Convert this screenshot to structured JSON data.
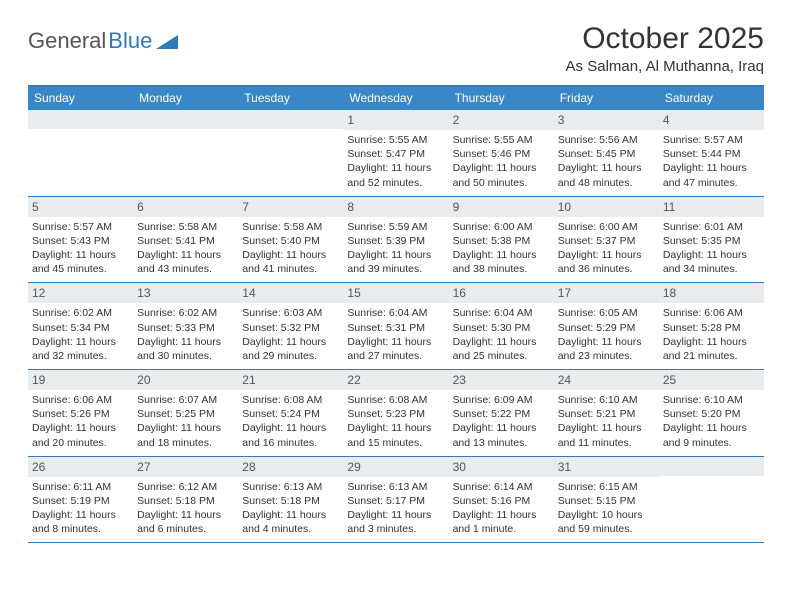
{
  "logo": {
    "text1": "General",
    "text2": "Blue"
  },
  "title": "October 2025",
  "location": "As Salman, Al Muthanna, Iraq",
  "colors": {
    "header_bg": "#3a87c8",
    "border": "#2f7ab8",
    "daynum_bg": "#e9ecef",
    "text": "#333333",
    "logo_gray": "#555555",
    "logo_blue": "#2f7ab8"
  },
  "day_labels": [
    "Sunday",
    "Monday",
    "Tuesday",
    "Wednesday",
    "Thursday",
    "Friday",
    "Saturday"
  ],
  "weeks": [
    [
      {
        "day": "",
        "sunrise": "",
        "sunset": "",
        "daylight": ""
      },
      {
        "day": "",
        "sunrise": "",
        "sunset": "",
        "daylight": ""
      },
      {
        "day": "",
        "sunrise": "",
        "sunset": "",
        "daylight": ""
      },
      {
        "day": "1",
        "sunrise": "Sunrise: 5:55 AM",
        "sunset": "Sunset: 5:47 PM",
        "daylight": "Daylight: 11 hours and 52 minutes."
      },
      {
        "day": "2",
        "sunrise": "Sunrise: 5:55 AM",
        "sunset": "Sunset: 5:46 PM",
        "daylight": "Daylight: 11 hours and 50 minutes."
      },
      {
        "day": "3",
        "sunrise": "Sunrise: 5:56 AM",
        "sunset": "Sunset: 5:45 PM",
        "daylight": "Daylight: 11 hours and 48 minutes."
      },
      {
        "day": "4",
        "sunrise": "Sunrise: 5:57 AM",
        "sunset": "Sunset: 5:44 PM",
        "daylight": "Daylight: 11 hours and 47 minutes."
      }
    ],
    [
      {
        "day": "5",
        "sunrise": "Sunrise: 5:57 AM",
        "sunset": "Sunset: 5:43 PM",
        "daylight": "Daylight: 11 hours and 45 minutes."
      },
      {
        "day": "6",
        "sunrise": "Sunrise: 5:58 AM",
        "sunset": "Sunset: 5:41 PM",
        "daylight": "Daylight: 11 hours and 43 minutes."
      },
      {
        "day": "7",
        "sunrise": "Sunrise: 5:58 AM",
        "sunset": "Sunset: 5:40 PM",
        "daylight": "Daylight: 11 hours and 41 minutes."
      },
      {
        "day": "8",
        "sunrise": "Sunrise: 5:59 AM",
        "sunset": "Sunset: 5:39 PM",
        "daylight": "Daylight: 11 hours and 39 minutes."
      },
      {
        "day": "9",
        "sunrise": "Sunrise: 6:00 AM",
        "sunset": "Sunset: 5:38 PM",
        "daylight": "Daylight: 11 hours and 38 minutes."
      },
      {
        "day": "10",
        "sunrise": "Sunrise: 6:00 AM",
        "sunset": "Sunset: 5:37 PM",
        "daylight": "Daylight: 11 hours and 36 minutes."
      },
      {
        "day": "11",
        "sunrise": "Sunrise: 6:01 AM",
        "sunset": "Sunset: 5:35 PM",
        "daylight": "Daylight: 11 hours and 34 minutes."
      }
    ],
    [
      {
        "day": "12",
        "sunrise": "Sunrise: 6:02 AM",
        "sunset": "Sunset: 5:34 PM",
        "daylight": "Daylight: 11 hours and 32 minutes."
      },
      {
        "day": "13",
        "sunrise": "Sunrise: 6:02 AM",
        "sunset": "Sunset: 5:33 PM",
        "daylight": "Daylight: 11 hours and 30 minutes."
      },
      {
        "day": "14",
        "sunrise": "Sunrise: 6:03 AM",
        "sunset": "Sunset: 5:32 PM",
        "daylight": "Daylight: 11 hours and 29 minutes."
      },
      {
        "day": "15",
        "sunrise": "Sunrise: 6:04 AM",
        "sunset": "Sunset: 5:31 PM",
        "daylight": "Daylight: 11 hours and 27 minutes."
      },
      {
        "day": "16",
        "sunrise": "Sunrise: 6:04 AM",
        "sunset": "Sunset: 5:30 PM",
        "daylight": "Daylight: 11 hours and 25 minutes."
      },
      {
        "day": "17",
        "sunrise": "Sunrise: 6:05 AM",
        "sunset": "Sunset: 5:29 PM",
        "daylight": "Daylight: 11 hours and 23 minutes."
      },
      {
        "day": "18",
        "sunrise": "Sunrise: 6:06 AM",
        "sunset": "Sunset: 5:28 PM",
        "daylight": "Daylight: 11 hours and 21 minutes."
      }
    ],
    [
      {
        "day": "19",
        "sunrise": "Sunrise: 6:06 AM",
        "sunset": "Sunset: 5:26 PM",
        "daylight": "Daylight: 11 hours and 20 minutes."
      },
      {
        "day": "20",
        "sunrise": "Sunrise: 6:07 AM",
        "sunset": "Sunset: 5:25 PM",
        "daylight": "Daylight: 11 hours and 18 minutes."
      },
      {
        "day": "21",
        "sunrise": "Sunrise: 6:08 AM",
        "sunset": "Sunset: 5:24 PM",
        "daylight": "Daylight: 11 hours and 16 minutes."
      },
      {
        "day": "22",
        "sunrise": "Sunrise: 6:08 AM",
        "sunset": "Sunset: 5:23 PM",
        "daylight": "Daylight: 11 hours and 15 minutes."
      },
      {
        "day": "23",
        "sunrise": "Sunrise: 6:09 AM",
        "sunset": "Sunset: 5:22 PM",
        "daylight": "Daylight: 11 hours and 13 minutes."
      },
      {
        "day": "24",
        "sunrise": "Sunrise: 6:10 AM",
        "sunset": "Sunset: 5:21 PM",
        "daylight": "Daylight: 11 hours and 11 minutes."
      },
      {
        "day": "25",
        "sunrise": "Sunrise: 6:10 AM",
        "sunset": "Sunset: 5:20 PM",
        "daylight": "Daylight: 11 hours and 9 minutes."
      }
    ],
    [
      {
        "day": "26",
        "sunrise": "Sunrise: 6:11 AM",
        "sunset": "Sunset: 5:19 PM",
        "daylight": "Daylight: 11 hours and 8 minutes."
      },
      {
        "day": "27",
        "sunrise": "Sunrise: 6:12 AM",
        "sunset": "Sunset: 5:18 PM",
        "daylight": "Daylight: 11 hours and 6 minutes."
      },
      {
        "day": "28",
        "sunrise": "Sunrise: 6:13 AM",
        "sunset": "Sunset: 5:18 PM",
        "daylight": "Daylight: 11 hours and 4 minutes."
      },
      {
        "day": "29",
        "sunrise": "Sunrise: 6:13 AM",
        "sunset": "Sunset: 5:17 PM",
        "daylight": "Daylight: 11 hours and 3 minutes."
      },
      {
        "day": "30",
        "sunrise": "Sunrise: 6:14 AM",
        "sunset": "Sunset: 5:16 PM",
        "daylight": "Daylight: 11 hours and 1 minute."
      },
      {
        "day": "31",
        "sunrise": "Sunrise: 6:15 AM",
        "sunset": "Sunset: 5:15 PM",
        "daylight": "Daylight: 10 hours and 59 minutes."
      },
      {
        "day": "",
        "sunrise": "",
        "sunset": "",
        "daylight": ""
      }
    ]
  ]
}
